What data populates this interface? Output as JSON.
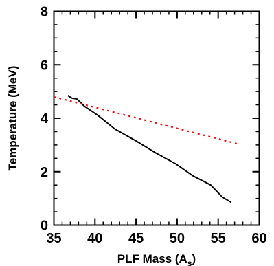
{
  "chart_data": {
    "type": "line",
    "title": "",
    "xlabel": "PLF Mass (A",
    "xlabel_sub": "s",
    "xlabel_close": ")",
    "ylabel": "Temperature (MeV)",
    "xlim": [
      35,
      60
    ],
    "ylim": [
      0,
      8
    ],
    "x_major_ticks": [
      35,
      40,
      45,
      50,
      55,
      60
    ],
    "y_major_ticks": [
      0,
      2,
      4,
      6,
      8
    ],
    "x_minor_step": 1,
    "y_minor_step": 0.5,
    "grid": false,
    "series": [
      {
        "style": "solid",
        "color": "#000000",
        "x": [
          36.7,
          37.2,
          37.8,
          38.7,
          40.3,
          42.4,
          45.0,
          47.4,
          49.8,
          51.9,
          54.1,
          55.5,
          56.6
        ],
        "y": [
          4.85,
          4.75,
          4.72,
          4.45,
          4.12,
          3.6,
          3.15,
          2.7,
          2.3,
          1.85,
          1.5,
          1.05,
          0.85
        ]
      },
      {
        "style": "dotted",
        "color": "#e8161b",
        "x": [
          35.0,
          57.5
        ],
        "y": [
          4.8,
          3.03
        ]
      }
    ]
  }
}
